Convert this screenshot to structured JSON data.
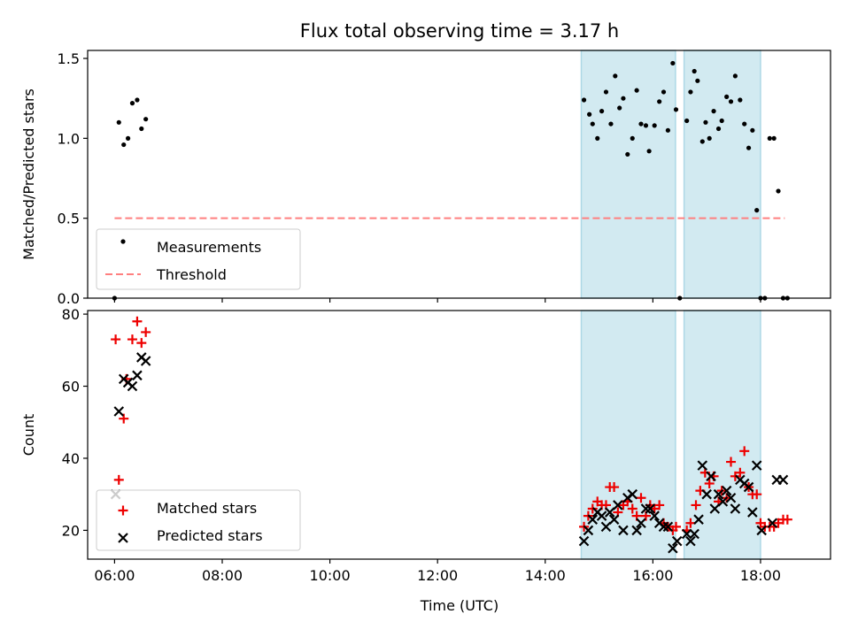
{
  "title": "Flux total observing time = 3.17 h",
  "xlabel": "Time (UTC)",
  "colors": {
    "measurements": "#000000",
    "threshold": "#ff7f7f",
    "matched": "#ee0000",
    "predicted": "#000000",
    "shade": "#add8e6"
  },
  "chart_data": [
    {
      "type": "scatter",
      "ylabel": "Matched/Predicted stars",
      "ylim": [
        0,
        1.55
      ],
      "yticks": [
        0.0,
        0.5,
        1.0,
        1.5
      ],
      "ytick_labels": [
        "0.0",
        "0.5",
        "1.0",
        "1.5"
      ],
      "xlim": [
        5.5,
        19.3
      ],
      "xticks": [
        6,
        8,
        10,
        12,
        14,
        16,
        18
      ],
      "xtick_labels": [
        "06:00",
        "08:00",
        "10:00",
        "12:00",
        "14:00",
        "16:00",
        "18:00"
      ],
      "shaded_intervals": [
        [
          14.67,
          16.42
        ],
        [
          16.58,
          18.0
        ]
      ],
      "legend_position": "lower-left",
      "series": [
        {
          "name": "Measurements",
          "marker": "dot",
          "x": [
            6.0,
            6.08,
            6.17,
            6.25,
            6.33,
            6.42,
            6.5,
            6.58,
            14.72,
            14.82,
            14.88,
            14.97,
            15.05,
            15.13,
            15.22,
            15.3,
            15.38,
            15.45,
            15.53,
            15.62,
            15.7,
            15.78,
            15.87,
            15.93,
            16.03,
            16.12,
            16.2,
            16.28,
            16.37,
            16.43,
            16.5,
            16.63,
            16.7,
            16.77,
            16.83,
            16.92,
            16.98,
            17.05,
            17.13,
            17.22,
            17.28,
            17.37,
            17.45,
            17.53,
            17.62,
            17.7,
            17.78,
            17.85,
            17.93,
            18.0,
            18.08,
            18.17,
            18.25,
            18.33,
            18.42,
            18.5
          ],
          "y": [
            0.0,
            1.1,
            0.96,
            1.0,
            1.22,
            1.24,
            1.06,
            1.12,
            1.24,
            1.15,
            1.09,
            1.0,
            1.17,
            1.29,
            1.09,
            1.39,
            1.19,
            1.25,
            0.9,
            1.0,
            1.3,
            1.09,
            1.08,
            0.92,
            1.08,
            1.23,
            1.29,
            1.05,
            1.47,
            1.18,
            0.0,
            1.11,
            1.29,
            1.42,
            1.36,
            0.98,
            1.1,
            1.0,
            1.17,
            1.06,
            1.11,
            1.26,
            1.23,
            1.39,
            1.24,
            1.09,
            0.94,
            1.05,
            0.55,
            0.0,
            0.0,
            1.0,
            1.0,
            0.67,
            0.0,
            0.0
          ]
        },
        {
          "name": "Threshold",
          "marker": "dashed-line",
          "x": [
            6.0,
            18.45
          ],
          "y": [
            0.5,
            0.5
          ]
        }
      ]
    },
    {
      "type": "scatter",
      "ylabel": "Count",
      "ylim": [
        12,
        81
      ],
      "yticks": [
        20,
        40,
        60,
        80
      ],
      "ytick_labels": [
        "20",
        "40",
        "60",
        "80"
      ],
      "xlim": [
        5.5,
        19.3
      ],
      "xticks": [
        6,
        8,
        10,
        12,
        14,
        16,
        18
      ],
      "xtick_labels": [
        "06:00",
        "08:00",
        "10:00",
        "12:00",
        "14:00",
        "16:00",
        "18:00"
      ],
      "shaded_intervals": [
        [
          14.67,
          16.42
        ],
        [
          16.58,
          18.0
        ]
      ],
      "legend_position": "lower-left",
      "series": [
        {
          "name": "Matched stars",
          "marker": "plus",
          "x": [
            6.02,
            6.08,
            6.17,
            6.22,
            6.33,
            6.42,
            6.5,
            6.58,
            14.72,
            14.8,
            14.88,
            14.97,
            15.05,
            15.13,
            15.2,
            15.28,
            15.35,
            15.45,
            15.53,
            15.62,
            15.7,
            15.78,
            15.87,
            15.95,
            16.03,
            16.12,
            16.2,
            16.28,
            16.37,
            16.43,
            16.63,
            16.7,
            16.8,
            16.88,
            16.97,
            17.05,
            17.13,
            17.22,
            17.28,
            17.37,
            17.45,
            17.53,
            17.62,
            17.7,
            17.78,
            17.85,
            17.93,
            18.0,
            18.08,
            18.17,
            18.25,
            18.33,
            18.42,
            18.5
          ],
          "y": [
            73,
            34,
            51,
            62,
            73,
            78,
            72,
            75,
            21,
            24,
            26,
            28,
            27,
            27,
            32,
            32,
            25,
            27,
            28,
            26,
            24,
            29,
            24,
            27,
            26,
            27,
            22,
            21,
            20,
            21,
            20,
            22,
            27,
            31,
            36,
            33,
            35,
            28,
            31,
            29,
            39,
            35,
            36,
            42,
            32,
            30,
            30,
            22,
            21,
            21,
            21,
            22,
            23,
            23
          ]
        },
        {
          "name": "Predicted stars",
          "marker": "x",
          "x": [
            6.02,
            6.08,
            6.17,
            6.25,
            6.33,
            6.42,
            6.5,
            6.58,
            14.72,
            14.8,
            14.88,
            14.97,
            15.05,
            15.13,
            15.2,
            15.28,
            15.35,
            15.45,
            15.53,
            15.62,
            15.7,
            15.78,
            15.87,
            15.95,
            16.03,
            16.12,
            16.2,
            16.28,
            16.37,
            16.45,
            16.63,
            16.7,
            16.77,
            16.85,
            16.92,
            17.0,
            17.08,
            17.15,
            17.22,
            17.3,
            17.37,
            17.45,
            17.53,
            17.62,
            17.7,
            17.78,
            17.85,
            17.93,
            18.02,
            18.22,
            18.3,
            18.42
          ],
          "y": [
            30,
            53,
            62,
            61,
            60,
            63,
            68,
            67,
            17,
            20,
            23,
            25,
            24,
            21,
            25,
            23,
            27,
            20,
            29,
            30,
            20,
            22,
            26,
            26,
            24,
            22,
            21,
            21,
            15,
            17,
            19,
            17,
            19,
            23,
            38,
            30,
            35,
            26,
            30,
            28,
            31,
            29,
            26,
            34,
            33,
            32,
            25,
            38,
            20,
            22,
            34,
            34
          ]
        }
      ]
    }
  ]
}
